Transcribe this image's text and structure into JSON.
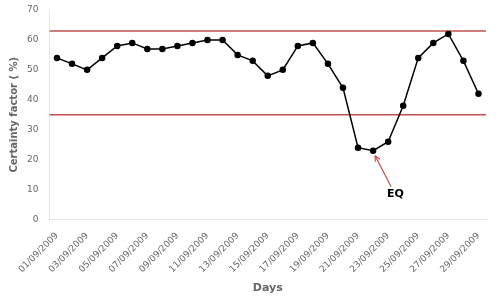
{
  "chart_data": {
    "type": "line",
    "xlabel": "Days",
    "ylabel": "Certainty factor ( %)",
    "categories": [
      "01/09/2009",
      null,
      "03/09/2009",
      null,
      "05/09/2009",
      null,
      "07/09/2009",
      null,
      "09/09/2009",
      null,
      "11/09/2009",
      null,
      "13/09/2009",
      null,
      "15/09/2009",
      null,
      "17/09/2009",
      null,
      "19/09/2009",
      null,
      "21/09/2009",
      null,
      "23/09/2009",
      null,
      "25/09/2009",
      null,
      "27/09/2009",
      null,
      "29/09/2009"
    ],
    "values": [
      54,
      52,
      50,
      54,
      58,
      59,
      57,
      57,
      58,
      59,
      60,
      60,
      55,
      53,
      48,
      50,
      58,
      59,
      52,
      44,
      24,
      23,
      26,
      38,
      54,
      59,
      62,
      53,
      42
    ],
    "color": "#000000",
    "marker": "circle",
    "ylim": [
      0,
      70
    ],
    "yticks": [
      0,
      10,
      20,
      30,
      40,
      50,
      60,
      70
    ],
    "grid": false,
    "hlines": [
      {
        "value": 63,
        "color": "#c0504d"
      },
      {
        "value": 35,
        "color": "#c0504d"
      }
    ],
    "annotations": [
      {
        "text": "EQ",
        "x": 21,
        "y": 23,
        "color": "#c0504d"
      }
    ]
  }
}
